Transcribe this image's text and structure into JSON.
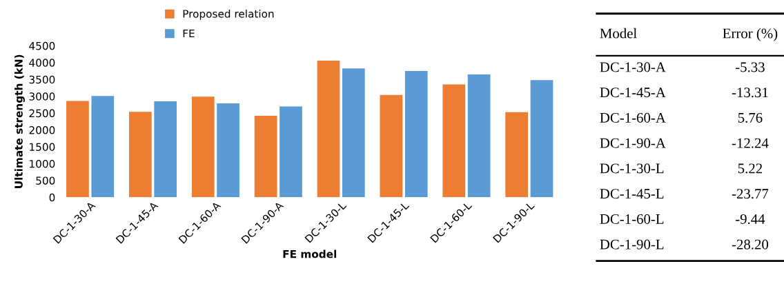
{
  "chart_data": [
    {
      "type": "bar",
      "xlabel": "FE model",
      "ylabel": "Ultimate strength (kN)",
      "categories": [
        "DC-1-30-A",
        "DC-1-45-A",
        "DC-1-60-A",
        "DC-1-90-A",
        "DC-1-30-L",
        "DC-1-45-L",
        "DC-1-60-L",
        "DC-1-90-L"
      ],
      "series": [
        {
          "name": "Proposed relation",
          "color": "#ed7d31",
          "values": [
            2860,
            2540,
            2990,
            2420,
            4060,
            3040,
            3350,
            2530
          ]
        },
        {
          "name": "FE",
          "color": "#5b9bd5",
          "values": [
            3010,
            2850,
            2790,
            2700,
            3830,
            3750,
            3650,
            3480
          ]
        }
      ],
      "ylim": [
        0,
        4500
      ],
      "yticks": [
        0,
        500,
        1000,
        1500,
        2000,
        2500,
        3000,
        3500,
        4000,
        4500
      ],
      "grid": false,
      "legend": "top left"
    },
    {
      "type": "other",
      "annotations": [
        "Model",
        "Error (%)"
      ],
      "categories": [
        "DC-1-30-A",
        "DC-1-45-A",
        "DC-1-60-A",
        "DC-1-90-A",
        "DC-1-30-L",
        "DC-1-45-L",
        "DC-1-60-L",
        "DC-1-90-L"
      ],
      "value_labels": [
        "-5.33",
        "-13.31",
        "5.76",
        "-12.24",
        "5.22",
        "-23.77",
        "-9.44",
        "-28.20"
      ]
    }
  ]
}
